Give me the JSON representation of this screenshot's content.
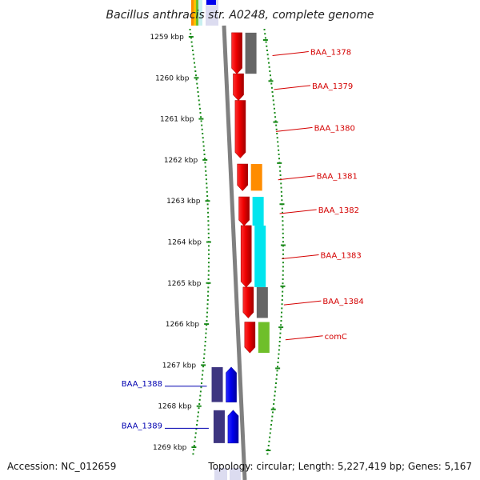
{
  "title": "Bacillus anthracis str. A0248, complete genome",
  "footer": {
    "accession": "Accession: NC_012659",
    "stats": "Topology: circular; Length: 5,227,419 bp; Genes: 5,167"
  },
  "axis": {
    "unit": "kbp",
    "ticks": [
      {
        "kbp": 1259,
        "label": "1259 kbp"
      },
      {
        "kbp": 1260,
        "label": "1260 kbp"
      },
      {
        "kbp": 1261,
        "label": "1261 kbp"
      },
      {
        "kbp": 1262,
        "label": "1262 kbp"
      },
      {
        "kbp": 1263,
        "label": "1263 kbp"
      },
      {
        "kbp": 1264,
        "label": "1264 kbp"
      },
      {
        "kbp": 1265,
        "label": "1265 kbp"
      },
      {
        "kbp": 1266,
        "label": "1266 kbp"
      },
      {
        "kbp": 1267,
        "label": "1267 kbp"
      },
      {
        "kbp": 1268,
        "label": "1268 kbp"
      },
      {
        "kbp": 1269,
        "label": "1269 kbp"
      }
    ]
  },
  "genes": [
    {
      "label": "BAA_1378",
      "strand": "forward",
      "start_kbp": 1258.9,
      "end_kbp": 1259.9,
      "color": "#ee0000",
      "cog_color": "#666666"
    },
    {
      "label": "BAA_1379",
      "strand": "forward",
      "start_kbp": 1259.9,
      "end_kbp": 1260.55,
      "color": "#ee0000",
      "cog_color": ""
    },
    {
      "label": "BAA_1380",
      "strand": "forward",
      "start_kbp": 1260.55,
      "end_kbp": 1261.95,
      "color": "#ee0000",
      "cog_color": ""
    },
    {
      "label": "BAA_1381",
      "strand": "forward",
      "start_kbp": 1262.1,
      "end_kbp": 1262.75,
      "color": "#ee0000",
      "cog_color": "#ff8c00"
    },
    {
      "label": "BAA_1382",
      "strand": "forward",
      "start_kbp": 1262.9,
      "end_kbp": 1263.6,
      "color": "#ee0000",
      "cog_color": "#00e5ee"
    },
    {
      "label": "BAA_1383",
      "strand": "forward",
      "start_kbp": 1263.6,
      "end_kbp": 1265.1,
      "color": "#ee0000",
      "cog_color": "#00e5ee"
    },
    {
      "label": "BAA_1384",
      "strand": "forward",
      "start_kbp": 1265.1,
      "end_kbp": 1265.85,
      "color": "#ee0000",
      "cog_color": "#666666"
    },
    {
      "label": "comC",
      "strand": "forward",
      "start_kbp": 1265.95,
      "end_kbp": 1266.7,
      "color": "#ee0000",
      "cog_color": "#6fbf2a"
    },
    {
      "label": "BAA_1388",
      "strand": "reverse",
      "start_kbp": 1267.05,
      "end_kbp": 1267.9,
      "color": "#0000ee",
      "cog_color": "#3d3580"
    },
    {
      "label": "BAA_1389",
      "strand": "reverse",
      "start_kbp": 1268.1,
      "end_kbp": 1268.9,
      "color": "#0000ee",
      "cog_color": "#3d3580"
    }
  ]
}
